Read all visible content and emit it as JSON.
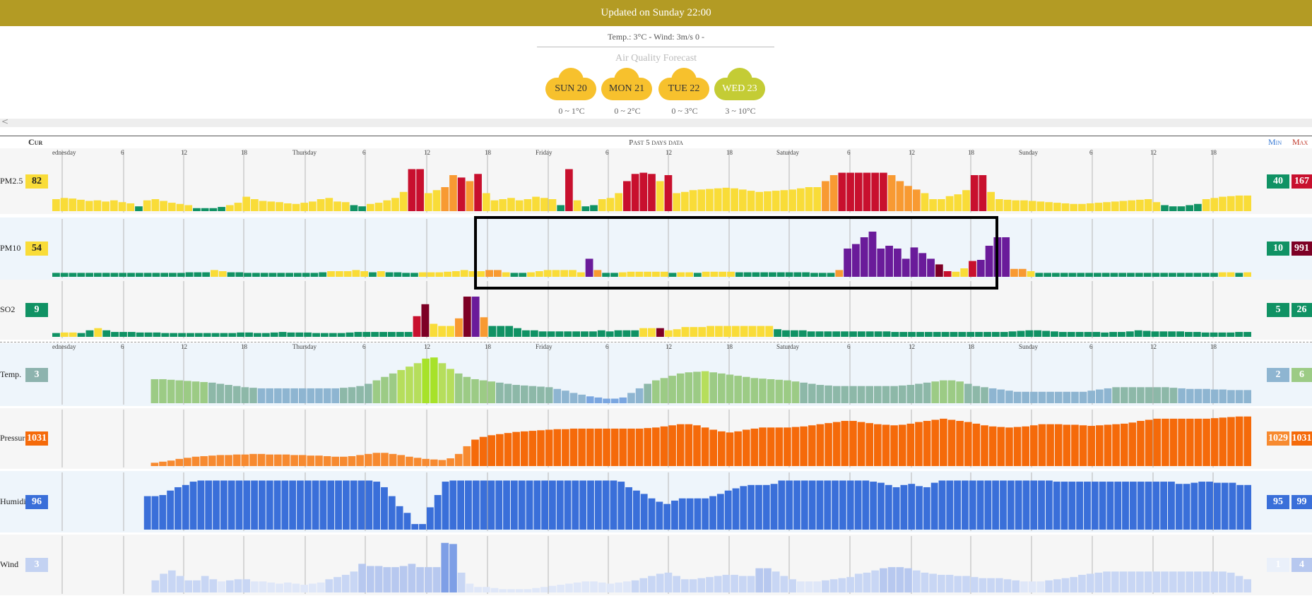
{
  "header": {
    "updated": "Updated on Sunday 22:00",
    "conditions": "Temp.: 3°C - Wind: 3m/s 0 -",
    "forecast_title": "Air Quality Forecast"
  },
  "forecast": [
    {
      "day": "SUN 20",
      "range": "0 ~ 1°C",
      "color": "#f7c12d"
    },
    {
      "day": "MON 21",
      "range": "0 ~ 2°C",
      "color": "#f7c12d"
    },
    {
      "day": "TUE 22",
      "range": "0 ~ 3°C",
      "color": "#f7c12d"
    },
    {
      "day": "WED 23",
      "range": "3 ~ 10°C",
      "color": "#c4cc35"
    }
  ],
  "table": {
    "cur_label": "Cur",
    "past_label": "Past 5 days data",
    "min_label": "Min",
    "max_label": "Max",
    "scroll_left": "<"
  },
  "time_labels": [
    "ednesday",
    "6",
    "12",
    "18",
    "Thursday",
    "6",
    "12",
    "18",
    "Friday",
    "6",
    "12",
    "18",
    "Saturday",
    "6",
    "12",
    "18",
    "Sunday",
    "6",
    "12",
    "18"
  ],
  "rows": [
    {
      "id": "pm25",
      "label": "PM2.5",
      "cur": "82",
      "cur_color": "#f9dc38",
      "cur_text": "#222",
      "min": "40",
      "min_color": "#109264",
      "max": "167",
      "max_color": "#c8102e",
      "bg": "#f6f6f6",
      "values": [
        20,
        22,
        21,
        19,
        17,
        18,
        16,
        18,
        15,
        13,
        8,
        18,
        20,
        17,
        14,
        12,
        10,
        5,
        5,
        5,
        7,
        10,
        14,
        24,
        20,
        17,
        16,
        15,
        13,
        12,
        14,
        16,
        20,
        22,
        16,
        15,
        10,
        8,
        12,
        14,
        18,
        22,
        32,
        70,
        70,
        30,
        35,
        40,
        60,
        56,
        50,
        62,
        30,
        18,
        20,
        22,
        18,
        20,
        24,
        22,
        20,
        10,
        70,
        18,
        8,
        10,
        20,
        22,
        30,
        50,
        62,
        64,
        62,
        50,
        60,
        30,
        32,
        35,
        36,
        37,
        38,
        39,
        38,
        36,
        34,
        32,
        33,
        34,
        35,
        36,
        38,
        40,
        40,
        50,
        60,
        64,
        64,
        64,
        64,
        64,
        64,
        60,
        50,
        42,
        36,
        30,
        20,
        20,
        25,
        28,
        35,
        60,
        60,
        32,
        20,
        19,
        18,
        18,
        17,
        16,
        15,
        14,
        13,
        12,
        12,
        13,
        14,
        15,
        16,
        17,
        18,
        19,
        20,
        15,
        10,
        8,
        8,
        10,
        12,
        20,
        22,
        24,
        25,
        26,
        26
      ],
      "cat": [
        1,
        1,
        1,
        1,
        1,
        1,
        1,
        1,
        1,
        1,
        0,
        1,
        1,
        1,
        1,
        1,
        1,
        0,
        0,
        0,
        0,
        1,
        1,
        1,
        1,
        1,
        1,
        1,
        1,
        1,
        1,
        1,
        1,
        1,
        1,
        1,
        0,
        0,
        1,
        1,
        1,
        1,
        1,
        3,
        3,
        1,
        1,
        2,
        2,
        3,
        2,
        3,
        1,
        1,
        1,
        1,
        1,
        1,
        1,
        1,
        1,
        0,
        3,
        1,
        0,
        0,
        1,
        1,
        1,
        3,
        3,
        3,
        3,
        1,
        3,
        1,
        1,
        1,
        1,
        1,
        1,
        1,
        1,
        1,
        1,
        1,
        1,
        1,
        1,
        1,
        1,
        1,
        1,
        2,
        2,
        3,
        3,
        3,
        3,
        3,
        3,
        2,
        2,
        2,
        2,
        1,
        1,
        1,
        1,
        1,
        1,
        3,
        3,
        1,
        1,
        1,
        1,
        1,
        1,
        1,
        1,
        1,
        1,
        1,
        1,
        1,
        1,
        1,
        1,
        1,
        1,
        1,
        1,
        1,
        0,
        0,
        0,
        0,
        0,
        1,
        1,
        1,
        1,
        1,
        1
      ]
    },
    {
      "id": "pm10",
      "label": "PM10",
      "cur": "54",
      "cur_color": "#f9dc38",
      "cur_text": "#222",
      "min": "10",
      "min_color": "#109264",
      "max": "991",
      "max_color": "#7d0025",
      "bg": "#eef5fb",
      "values": [
        7,
        7,
        7,
        7,
        7,
        7,
        7,
        7,
        7,
        7,
        7,
        7,
        7,
        7,
        7,
        7,
        8,
        8,
        8,
        12,
        10,
        8,
        8,
        7,
        7,
        7,
        7,
        7,
        7,
        7,
        7,
        7,
        8,
        10,
        10,
        10,
        12,
        10,
        8,
        10,
        8,
        8,
        7,
        7,
        8,
        8,
        8,
        9,
        10,
        12,
        10,
        10,
        12,
        12,
        8,
        7,
        7,
        8,
        10,
        12,
        12,
        12,
        12,
        8,
        32,
        12,
        7,
        7,
        8,
        9,
        9,
        9,
        9,
        9,
        7,
        8,
        8,
        7,
        9,
        9,
        9,
        9,
        8,
        8,
        8,
        8,
        8,
        8,
        8,
        8,
        8,
        7,
        7,
        7,
        12,
        50,
        58,
        70,
        80,
        50,
        55,
        50,
        32,
        52,
        42,
        32,
        22,
        10,
        9,
        15,
        28,
        30,
        55,
        70,
        70,
        14,
        14,
        10,
        7,
        7,
        7,
        7,
        7,
        7,
        7,
        7,
        7,
        7,
        7,
        7,
        7,
        7,
        7,
        7,
        7,
        7,
        7,
        7,
        7,
        7,
        8,
        8,
        7,
        8
      ],
      "cat": [
        0,
        0,
        0,
        0,
        0,
        0,
        0,
        0,
        0,
        0,
        0,
        0,
        0,
        0,
        0,
        0,
        0,
        0,
        0,
        1,
        1,
        0,
        0,
        0,
        0,
        0,
        0,
        0,
        0,
        0,
        0,
        0,
        0,
        1,
        1,
        1,
        1,
        1,
        0,
        1,
        0,
        0,
        0,
        0,
        1,
        1,
        1,
        1,
        1,
        1,
        1,
        1,
        2,
        2,
        1,
        0,
        0,
        1,
        1,
        1,
        1,
        1,
        1,
        1,
        4,
        2,
        0,
        0,
        1,
        1,
        1,
        1,
        1,
        1,
        0,
        1,
        1,
        0,
        1,
        1,
        1,
        1,
        0,
        0,
        0,
        0,
        0,
        0,
        0,
        0,
        0,
        0,
        0,
        0,
        2,
        4,
        4,
        4,
        4,
        4,
        4,
        4,
        4,
        4,
        4,
        4,
        5,
        3,
        1,
        1,
        3,
        4,
        4,
        4,
        4,
        2,
        2,
        1,
        0,
        0,
        0,
        0,
        0,
        0,
        0,
        0,
        0,
        0,
        0,
        0,
        0,
        0,
        0,
        0,
        0,
        0,
        0,
        0,
        0,
        0,
        1,
        1,
        0,
        1
      ]
    },
    {
      "id": "so2",
      "label": "SO2",
      "cur": "9",
      "cur_color": "#109264",
      "cur_text": "#fff",
      "min": "5",
      "min_color": "#109264",
      "max": "26",
      "max_color": "#109264",
      "bg": "#f6f6f6",
      "values": [
        7,
        8,
        8,
        7,
        12,
        16,
        12,
        9,
        9,
        9,
        8,
        8,
        8,
        7,
        7,
        7,
        7,
        7,
        7,
        7,
        7,
        7,
        8,
        8,
        7,
        7,
        8,
        9,
        8,
        8,
        8,
        7,
        7,
        7,
        7,
        8,
        9,
        9,
        9,
        9,
        9,
        9,
        9,
        38,
        60,
        24,
        20,
        20,
        34,
        74,
        74,
        36,
        20,
        20,
        20,
        16,
        12,
        12,
        10,
        10,
        10,
        10,
        10,
        10,
        10,
        12,
        10,
        12,
        12,
        12,
        16,
        16,
        16,
        12,
        14,
        18,
        18,
        18,
        20,
        20,
        20,
        20,
        20,
        20,
        20,
        20,
        14,
        12,
        12,
        12,
        10,
        10,
        10,
        10,
        10,
        10,
        10,
        10,
        10,
        10,
        9,
        9,
        9,
        9,
        9,
        9,
        9,
        9,
        9,
        9,
        9,
        9,
        9,
        9,
        10,
        11,
        12,
        12,
        11,
        10,
        9,
        9,
        9,
        9,
        9,
        8,
        9,
        9,
        10,
        12,
        11,
        10,
        10,
        10,
        10,
        9,
        9,
        8,
        8,
        8,
        8,
        9,
        9
      ],
      "cat": [
        0,
        1,
        1,
        0,
        0,
        1,
        0,
        0,
        0,
        0,
        0,
        0,
        0,
        0,
        0,
        0,
        0,
        0,
        0,
        0,
        0,
        0,
        0,
        0,
        0,
        0,
        0,
        0,
        0,
        0,
        0,
        0,
        0,
        0,
        0,
        0,
        0,
        0,
        0,
        0,
        0,
        0,
        0,
        3,
        5,
        1,
        1,
        1,
        2,
        5,
        4,
        2,
        0,
        0,
        0,
        0,
        0,
        0,
        0,
        0,
        0,
        0,
        0,
        0,
        0,
        0,
        0,
        0,
        0,
        0,
        1,
        1,
        5,
        1,
        1,
        1,
        1,
        1,
        1,
        1,
        1,
        1,
        1,
        1,
        1,
        1,
        0,
        0,
        0,
        0,
        0,
        0,
        0,
        0,
        0,
        0,
        0,
        0,
        0,
        0,
        0,
        0,
        0,
        0,
        0,
        0,
        0,
        0,
        0,
        0,
        0,
        0,
        0,
        0,
        0,
        0,
        0,
        0,
        0,
        0,
        0,
        0,
        0,
        0,
        0,
        0,
        0,
        0,
        0,
        0,
        0,
        0,
        0,
        0,
        0,
        0,
        0,
        0,
        0,
        0,
        0,
        0,
        0
      ]
    }
  ],
  "weather_rows": [
    {
      "id": "temp",
      "label": "Temp.",
      "cur": "3",
      "cur_color": "#8db3ae",
      "min": "2",
      "min_color": "#8eb5d1",
      "max": "6",
      "max_color": "#9ccb85",
      "bg": "#eef5fb",
      "color_mode": "temp",
      "values": [
        0,
        0,
        0,
        0,
        0,
        0,
        0,
        0,
        0,
        0,
        0,
        0,
        42,
        42,
        41,
        40,
        39,
        38,
        37,
        36,
        34,
        32,
        30,
        28,
        27,
        26,
        26,
        26,
        26,
        26,
        26,
        26,
        26,
        26,
        26,
        27,
        28,
        30,
        34,
        40,
        46,
        52,
        58,
        64,
        70,
        78,
        80,
        70,
        60,
        52,
        46,
        42,
        40,
        38,
        36,
        34,
        32,
        31,
        30,
        29,
        28,
        25,
        22,
        18,
        15,
        12,
        10,
        8,
        8,
        10,
        18,
        26,
        34,
        40,
        44,
        48,
        52,
        54,
        55,
        56,
        54,
        52,
        50,
        48,
        46,
        44,
        43,
        42,
        41,
        40,
        38,
        36,
        34,
        32,
        31,
        30,
        30,
        30,
        30,
        30,
        30,
        30,
        30,
        31,
        32,
        34,
        36,
        38,
        40,
        40,
        38,
        34,
        30,
        28,
        26,
        24,
        22,
        20,
        20,
        20,
        20,
        20,
        20,
        20,
        20,
        20,
        22,
        24,
        26,
        28,
        28,
        28,
        28,
        28,
        28,
        28,
        27,
        26,
        25,
        25,
        25,
        24,
        24,
        23,
        23,
        23
      ]
    },
    {
      "id": "pres",
      "label": "Pressure",
      "cur": "1031",
      "cur_color": "#f56a0a",
      "min": "1029",
      "min_color": "#f78a30",
      "max": "1031",
      "max_color": "#f56a0a",
      "bg": "#f6f6f6",
      "color_mode": "pres",
      "values": [
        0,
        0,
        0,
        0,
        0,
        0,
        0,
        0,
        0,
        0,
        0,
        0,
        6,
        8,
        10,
        13,
        15,
        17,
        18,
        19,
        20,
        20,
        21,
        21,
        22,
        22,
        21,
        21,
        21,
        20,
        20,
        19,
        19,
        18,
        17,
        17,
        18,
        20,
        22,
        24,
        24,
        22,
        20,
        17,
        15,
        13,
        12,
        11,
        14,
        22,
        36,
        48,
        53,
        56,
        58,
        60,
        62,
        63,
        64,
        65,
        66,
        67,
        67,
        68,
        68,
        68,
        68,
        68,
        68,
        68,
        68,
        68,
        69,
        70,
        72,
        74,
        76,
        76,
        74,
        70,
        66,
        63,
        61,
        63,
        66,
        68,
        70,
        70,
        70,
        70,
        71,
        72,
        74,
        76,
        78,
        80,
        82,
        82,
        80,
        78,
        76,
        75,
        74,
        75,
        77,
        80,
        82,
        84,
        86,
        84,
        82,
        80,
        77,
        74,
        72,
        71,
        70,
        71,
        72,
        74,
        76,
        76,
        76,
        75,
        75,
        74,
        73,
        74,
        75,
        76,
        77,
        79,
        82,
        84,
        86,
        86,
        86,
        86,
        86,
        86,
        86,
        87,
        88,
        89,
        90,
        90
      ]
    },
    {
      "id": "hum",
      "label": "Humidity",
      "cur": "96",
      "cur_color": "#3a6fd9",
      "min": "95",
      "min_color": "#3a6fd9",
      "max": "99",
      "max_color": "#3a6fd9",
      "bg": "#eef5fb",
      "color_mode": "hum",
      "values": [
        0,
        0,
        0,
        0,
        0,
        0,
        0,
        0,
        0,
        0,
        0,
        0,
        60,
        60,
        62,
        70,
        76,
        80,
        86,
        88,
        88,
        88,
        88,
        88,
        88,
        88,
        88,
        88,
        88,
        88,
        88,
        88,
        88,
        88,
        88,
        88,
        88,
        88,
        88,
        88,
        88,
        88,
        86,
        76,
        60,
        42,
        30,
        10,
        10,
        40,
        62,
        86,
        88,
        88,
        88,
        88,
        88,
        88,
        88,
        88,
        88,
        88,
        88,
        88,
        88,
        88,
        88,
        88,
        88,
        88,
        88,
        88,
        88,
        88,
        86,
        76,
        70,
        64,
        56,
        50,
        46,
        52,
        56,
        56,
        56,
        56,
        60,
        64,
        70,
        74,
        78,
        80,
        80,
        80,
        82,
        88,
        88,
        88,
        88,
        88,
        88,
        88,
        88,
        88,
        88,
        88,
        88,
        86,
        84,
        80,
        76,
        80,
        82,
        78,
        76,
        84,
        88,
        88,
        88,
        88,
        88,
        88,
        88,
        88,
        88,
        88,
        88,
        88,
        88,
        88,
        88,
        86,
        86,
        86,
        86,
        86,
        86,
        86,
        86,
        86,
        86,
        86,
        86,
        86,
        86,
        86,
        86,
        82,
        82,
        84,
        86,
        86,
        84,
        84,
        84,
        80,
        80
      ]
    },
    {
      "id": "wind",
      "label": "Wind",
      "cur": "3",
      "cur_color": "#c3d2f2",
      "min": "1",
      "min_color": "#eaf0fa",
      "max": "4",
      "max_color": "#b7c8ef",
      "bg": "#f6f6f6",
      "color_mode": "wind",
      "values": [
        0,
        0,
        0,
        0,
        0,
        0,
        0,
        0,
        0,
        0,
        0,
        0,
        22,
        34,
        40,
        30,
        22,
        22,
        30,
        24,
        20,
        22,
        24,
        24,
        20,
        20,
        18,
        16,
        18,
        16,
        14,
        16,
        18,
        24,
        28,
        32,
        38,
        52,
        48,
        48,
        46,
        46,
        48,
        52,
        46,
        46,
        46,
        90,
        88,
        36,
        16,
        10,
        10,
        8,
        6,
        6,
        6,
        6,
        8,
        10,
        12,
        14,
        16,
        18,
        20,
        20,
        18,
        16,
        18,
        20,
        22,
        26,
        30,
        34,
        36,
        30,
        24,
        24,
        26,
        28,
        30,
        32,
        32,
        30,
        30,
        44,
        44,
        38,
        30,
        24,
        20,
        20,
        20,
        22,
        24,
        26,
        28,
        34,
        36,
        40,
        44,
        46,
        46,
        44,
        40,
        36,
        34,
        32,
        32,
        30,
        30,
        28,
        26,
        26,
        26,
        24,
        22,
        20,
        20,
        20,
        22,
        24,
        26,
        28,
        32,
        34,
        36,
        38,
        38,
        38,
        38,
        38,
        38,
        38,
        38,
        38,
        38,
        38,
        38,
        38,
        38,
        38,
        36,
        30,
        24
      ]
    }
  ]
}
